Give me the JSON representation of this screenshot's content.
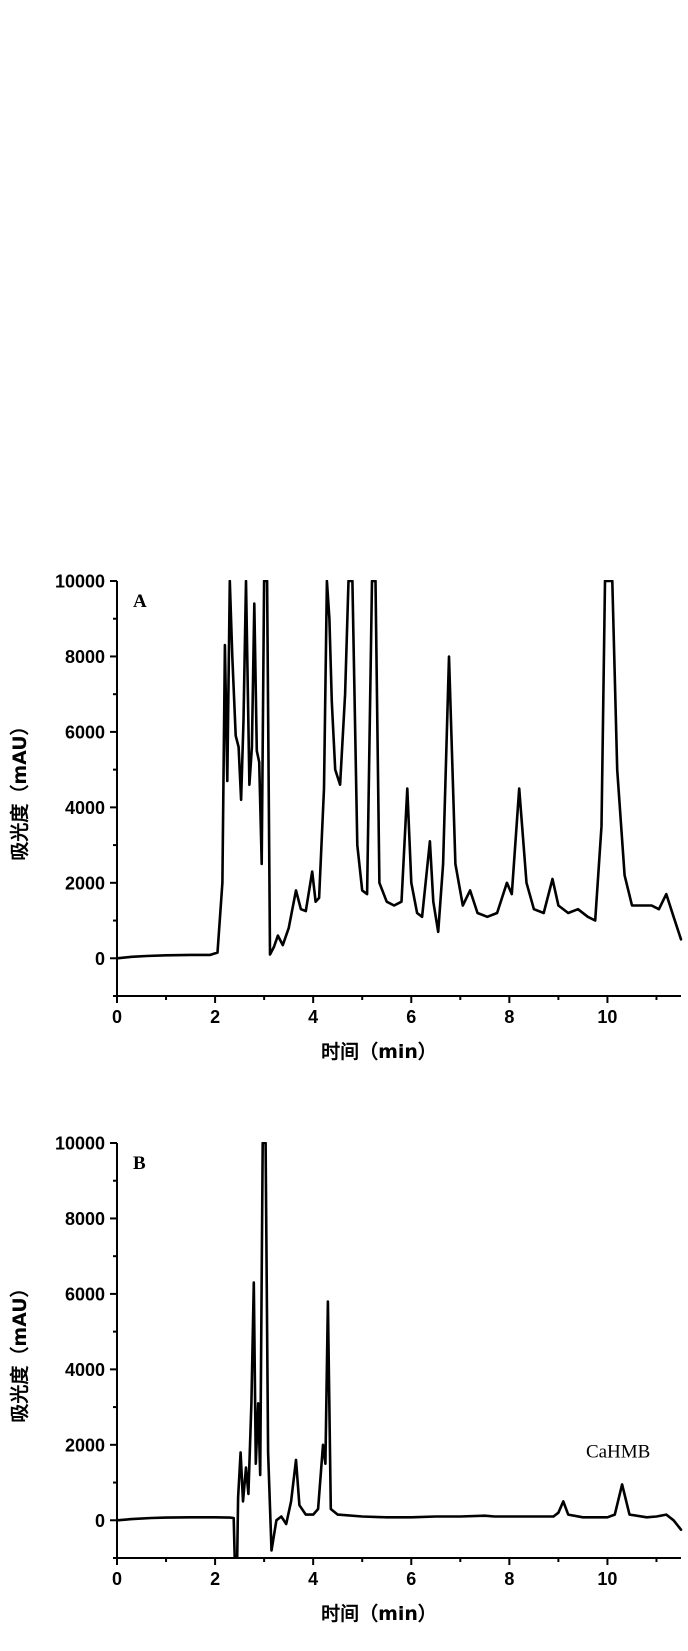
{
  "chart_data": [
    {
      "type": "line",
      "panel_label": "A",
      "xlabel": "时间（min）",
      "ylabel": "吸光度（mAU）",
      "xlim": [
        0,
        11.5
      ],
      "ylim": [
        -1000,
        10000
      ],
      "xticks": [
        0,
        2,
        4,
        6,
        8,
        10
      ],
      "yticks": [
        0,
        2000,
        4000,
        6000,
        8000,
        10000
      ],
      "annotations": [],
      "series": [
        {
          "points": [
            [
              0,
              0
            ],
            [
              0.3,
              40
            ],
            [
              0.6,
              60
            ],
            [
              1.0,
              80
            ],
            [
              1.5,
              90
            ],
            [
              1.9,
              90
            ],
            [
              2.05,
              150
            ],
            [
              2.15,
              2000
            ],
            [
              2.2,
              8300
            ],
            [
              2.25,
              4700
            ],
            [
              2.3,
              10000
            ],
            [
              2.35,
              8000
            ],
            [
              2.42,
              5900
            ],
            [
              2.48,
              5600
            ],
            [
              2.53,
              4200
            ],
            [
              2.58,
              6300
            ],
            [
              2.63,
              10000
            ],
            [
              2.7,
              4600
            ],
            [
              2.75,
              5600
            ],
            [
              2.8,
              9400
            ],
            [
              2.85,
              5500
            ],
            [
              2.9,
              5200
            ],
            [
              2.95,
              2500
            ],
            [
              3.0,
              10000
            ],
            [
              3.06,
              10000
            ],
            [
              3.12,
              100
            ],
            [
              3.2,
              300
            ],
            [
              3.28,
              600
            ],
            [
              3.38,
              350
            ],
            [
              3.5,
              800
            ],
            [
              3.65,
              1800
            ],
            [
              3.75,
              1300
            ],
            [
              3.85,
              1250
            ],
            [
              3.98,
              2300
            ],
            [
              4.05,
              1500
            ],
            [
              4.12,
              1600
            ],
            [
              4.22,
              4500
            ],
            [
              4.28,
              10000
            ],
            [
              4.33,
              9000
            ],
            [
              4.38,
              6800
            ],
            [
              4.45,
              5000
            ],
            [
              4.55,
              4600
            ],
            [
              4.65,
              7000
            ],
            [
              4.72,
              10000
            ],
            [
              4.8,
              10000
            ],
            [
              4.9,
              3000
            ],
            [
              5.0,
              1800
            ],
            [
              5.1,
              1700
            ],
            [
              5.2,
              10000
            ],
            [
              5.27,
              10000
            ],
            [
              5.35,
              2000
            ],
            [
              5.5,
              1500
            ],
            [
              5.65,
              1400
            ],
            [
              5.8,
              1500
            ],
            [
              5.92,
              4500
            ],
            [
              6.0,
              2000
            ],
            [
              6.12,
              1200
            ],
            [
              6.22,
              1100
            ],
            [
              6.38,
              3100
            ],
            [
              6.45,
              1500
            ],
            [
              6.55,
              700
            ],
            [
              6.65,
              2500
            ],
            [
              6.77,
              8000
            ],
            [
              6.9,
              2500
            ],
            [
              7.05,
              1400
            ],
            [
              7.2,
              1800
            ],
            [
              7.35,
              1200
            ],
            [
              7.55,
              1100
            ],
            [
              7.75,
              1200
            ],
            [
              7.95,
              2000
            ],
            [
              8.05,
              1700
            ],
            [
              8.2,
              4500
            ],
            [
              8.35,
              2000
            ],
            [
              8.5,
              1300
            ],
            [
              8.7,
              1200
            ],
            [
              8.88,
              2100
            ],
            [
              9.0,
              1400
            ],
            [
              9.2,
              1200
            ],
            [
              9.4,
              1300
            ],
            [
              9.6,
              1100
            ],
            [
              9.75,
              1000
            ],
            [
              9.88,
              3500
            ],
            [
              9.95,
              10000
            ],
            [
              10.1,
              10000
            ],
            [
              10.2,
              5000
            ],
            [
              10.35,
              2200
            ],
            [
              10.5,
              1400
            ],
            [
              10.7,
              1400
            ],
            [
              10.9,
              1400
            ],
            [
              11.05,
              1300
            ],
            [
              11.2,
              1700
            ],
            [
              11.35,
              1100
            ],
            [
              11.5,
              500
            ]
          ]
        }
      ]
    },
    {
      "type": "line",
      "panel_label": "B",
      "xlabel": "时间（min）",
      "ylabel": "吸光度（mAU）",
      "xlim": [
        0,
        11.5
      ],
      "ylim": [
        -1000,
        10000
      ],
      "xticks": [
        0,
        2,
        4,
        6,
        8,
        10
      ],
      "yticks": [
        0,
        2000,
        4000,
        6000,
        8000,
        10000
      ],
      "annotations": [
        {
          "text": "CaHMB",
          "x": 10.3,
          "y": 1500
        }
      ],
      "series": [
        {
          "points": [
            [
              0,
              0
            ],
            [
              0.3,
              30
            ],
            [
              0.7,
              60
            ],
            [
              1.0,
              70
            ],
            [
              1.5,
              80
            ],
            [
              2.0,
              80
            ],
            [
              2.3,
              70
            ],
            [
              2.38,
              60
            ],
            [
              2.4,
              -1000
            ],
            [
              2.45,
              -1000
            ],
            [
              2.47,
              600
            ],
            [
              2.52,
              1800
            ],
            [
              2.57,
              500
            ],
            [
              2.63,
              1400
            ],
            [
              2.68,
              700
            ],
            [
              2.74,
              3100
            ],
            [
              2.79,
              6300
            ],
            [
              2.83,
              1500
            ],
            [
              2.88,
              3100
            ],
            [
              2.92,
              1200
            ],
            [
              2.97,
              10000
            ],
            [
              3.03,
              10000
            ],
            [
              3.08,
              1800
            ],
            [
              3.15,
              -800
            ],
            [
              3.25,
              0
            ],
            [
              3.35,
              100
            ],
            [
              3.45,
              -100
            ],
            [
              3.55,
              500
            ],
            [
              3.65,
              1600
            ],
            [
              3.72,
              400
            ],
            [
              3.85,
              150
            ],
            [
              4.0,
              150
            ],
            [
              4.1,
              300
            ],
            [
              4.2,
              2000
            ],
            [
              4.25,
              1500
            ],
            [
              4.3,
              5800
            ],
            [
              4.36,
              300
            ],
            [
              4.5,
              150
            ],
            [
              5.0,
              100
            ],
            [
              5.5,
              80
            ],
            [
              6.0,
              80
            ],
            [
              6.5,
              100
            ],
            [
              7.0,
              100
            ],
            [
              7.5,
              120
            ],
            [
              7.7,
              100
            ],
            [
              8.0,
              100
            ],
            [
              8.5,
              100
            ],
            [
              8.9,
              100
            ],
            [
              9.0,
              200
            ],
            [
              9.1,
              500
            ],
            [
              9.2,
              150
            ],
            [
              9.5,
              80
            ],
            [
              10.0,
              80
            ],
            [
              10.15,
              150
            ],
            [
              10.3,
              950
            ],
            [
              10.45,
              150
            ],
            [
              10.8,
              80
            ],
            [
              11.0,
              100
            ],
            [
              11.2,
              150
            ],
            [
              11.35,
              0
            ],
            [
              11.5,
              -250
            ]
          ]
        }
      ]
    }
  ]
}
